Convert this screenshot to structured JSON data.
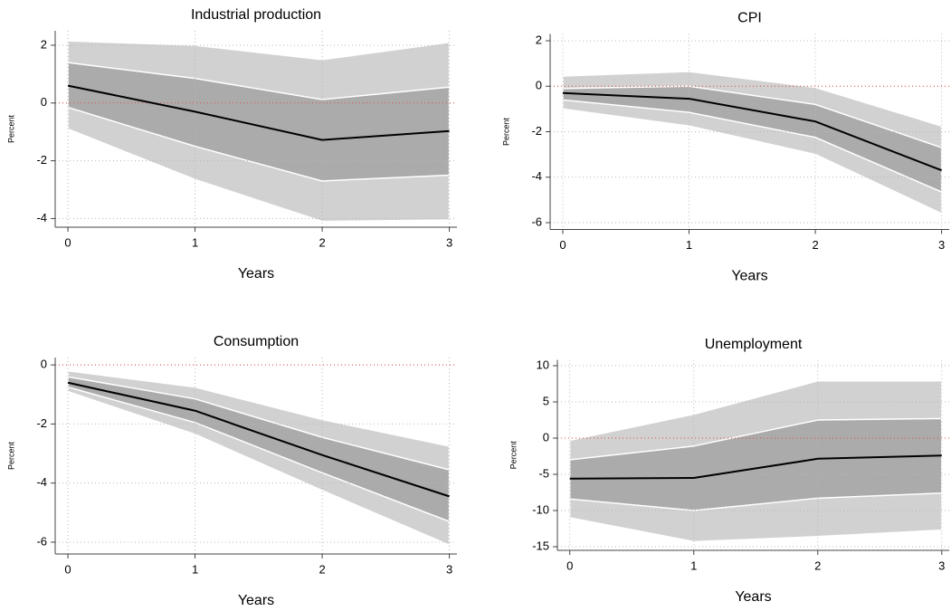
{
  "chart_data": [
    {
      "type": "band-line",
      "title": "Industrial production",
      "xlabel": "Years",
      "ylabel": "Percent",
      "x": [
        0,
        1,
        2,
        3
      ],
      "xlim": [
        -0.1,
        3.06
      ],
      "xticks": [
        0,
        1,
        2,
        3
      ],
      "ylim": [
        -4.3,
        2.5
      ],
      "yticks": [
        -4,
        -2,
        0,
        2
      ],
      "grid": true,
      "refline": 0,
      "refline_color": "#e0474c",
      "values": [
        0.6,
        -0.3,
        -1.28,
        -0.97
      ],
      "color": "#000000",
      "inner_upper": [
        1.4,
        0.85,
        0.12,
        0.55
      ],
      "inner_lower": [
        -0.15,
        -1.5,
        -2.7,
        -2.5
      ],
      "inner_color": "#ababab",
      "outer_upper": [
        2.15,
        2.0,
        1.5,
        2.1
      ],
      "outer_lower": [
        -0.9,
        -2.65,
        -4.1,
        -4.05
      ],
      "outer_color": "#d1d1d1"
    },
    {
      "type": "band-line",
      "title": "CPI",
      "xlabel": "Years",
      "ylabel": "Percent",
      "x": [
        0,
        1,
        2,
        3
      ],
      "xlim": [
        -0.1,
        3.06
      ],
      "xticks": [
        0,
        1,
        2,
        3
      ],
      "ylim": [
        -6.3,
        2.3
      ],
      "yticks": [
        -6,
        -4,
        -2,
        0,
        2
      ],
      "grid": true,
      "refline": 0,
      "refline_color": "#e0474c",
      "values": [
        -0.3,
        -0.55,
        -1.55,
        -3.7
      ],
      "color": "#000000",
      "inner_upper": [
        -0.1,
        0.0,
        -0.8,
        -2.7
      ],
      "inner_lower": [
        -0.6,
        -1.15,
        -2.25,
        -4.65
      ],
      "inner_color": "#ababab",
      "outer_upper": [
        0.45,
        0.65,
        -0.05,
        -1.75
      ],
      "outer_lower": [
        -1.0,
        -1.75,
        -3.0,
        -5.6
      ],
      "outer_color": "#d1d1d1"
    },
    {
      "type": "band-line",
      "title": "Consumption",
      "xlabel": "Years",
      "ylabel": "Percent",
      "x": [
        0,
        1,
        2,
        3
      ],
      "xlim": [
        -0.1,
        3.06
      ],
      "xticks": [
        0,
        1,
        2,
        3
      ],
      "ylim": [
        -6.4,
        0.25
      ],
      "yticks": [
        -6,
        -4,
        -2,
        0
      ],
      "grid": true,
      "refline": 0,
      "refline_color": "#e0474c",
      "values": [
        -0.6,
        -1.55,
        -3.05,
        -4.45
      ],
      "color": "#000000",
      "inner_upper": [
        -0.4,
        -1.15,
        -2.45,
        -3.55
      ],
      "inner_lower": [
        -0.75,
        -1.95,
        -3.65,
        -5.3
      ],
      "inner_color": "#ababab",
      "outer_upper": [
        -0.2,
        -0.75,
        -1.85,
        -2.75
      ],
      "outer_lower": [
        -0.9,
        -2.35,
        -4.25,
        -6.1
      ],
      "outer_color": "#d1d1d1"
    },
    {
      "type": "band-line",
      "title": "Unemployment",
      "xlabel": "Years",
      "ylabel": "Percent",
      "x": [
        0,
        1,
        2,
        3
      ],
      "xlim": [
        -0.1,
        3.06
      ],
      "xticks": [
        0,
        1,
        2,
        3
      ],
      "ylim": [
        -15.5,
        10.8
      ],
      "yticks": [
        -15,
        -10,
        -5,
        0,
        5,
        10
      ],
      "grid": true,
      "refline": 0,
      "refline_color": "#e0474c",
      "values": [
        -5.6,
        -5.5,
        -2.85,
        -2.4
      ],
      "color": "#000000",
      "inner_upper": [
        -3.0,
        -1.1,
        2.5,
        2.7
      ],
      "inner_lower": [
        -8.4,
        -10.0,
        -8.3,
        -7.6
      ],
      "inner_color": "#ababab",
      "outer_upper": [
        -0.3,
        3.3,
        7.9,
        7.9
      ],
      "outer_lower": [
        -11.0,
        -14.3,
        -13.6,
        -12.7
      ],
      "outer_color": "#d1d1d1"
    }
  ]
}
